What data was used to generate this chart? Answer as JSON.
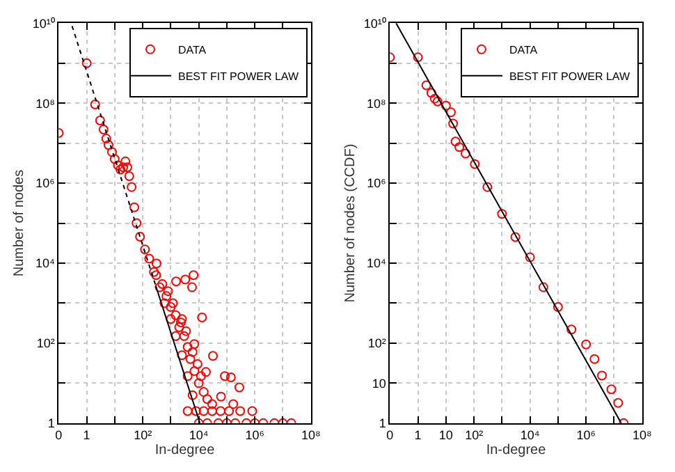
{
  "chart_data": [
    {
      "type": "scatter",
      "xlabel": "In-degree",
      "ylabel": "Number of nodes",
      "log": "xy",
      "grid": true,
      "legend": "top right",
      "xlim": [
        0.1,
        100000000
      ],
      "ylim": [
        1,
        10000000000
      ],
      "xticks": [
        {
          "value": 0.1,
          "label": "0"
        },
        1,
        {
          "value": 10,
          "label": null
        },
        {
          "value": 100,
          "label": "10²"
        },
        {
          "value": 1000,
          "label": null
        },
        {
          "value": 10000,
          "label": "10⁴"
        },
        {
          "value": 100000,
          "label": null
        },
        {
          "value": 1000000,
          "label": "10⁶"
        },
        {
          "value": 10000000,
          "label": null
        },
        {
          "value": 100000000,
          "label": "10⁸"
        }
      ],
      "yticks": [
        1,
        {
          "value": 10,
          "label": null
        },
        {
          "value": 100,
          "label": "10²"
        },
        {
          "value": 1000,
          "label": null
        },
        {
          "value": 10000,
          "label": "10⁴"
        },
        {
          "value": 100000,
          "label": null
        },
        {
          "value": 1000000,
          "label": "10⁶"
        },
        {
          "value": 10000000,
          "label": null
        },
        {
          "value": 100000000,
          "label": "10⁸"
        },
        {
          "value": 1000000000,
          "label": null
        },
        {
          "value": 10000000000,
          "label": "10¹⁰"
        }
      ],
      "series": [
        {
          "name": "DATA",
          "marker": "circle",
          "color": "#ff0000",
          "x": [
            0.1,
            1,
            2,
            3,
            4,
            5,
            6,
            8,
            10,
            13,
            16,
            20,
            24,
            28,
            33,
            40,
            50,
            60,
            80,
            120,
            170,
            250,
            400,
            600,
            1000,
            1500,
            2500,
            4000,
            6000,
            310,
            1550,
            3300,
            6500,
            5750,
            13000,
            2300,
            32000,
            85000,
            280000,
            140000,
            62000,
            170000,
            810000,
            6900,
            18000,
            300,
            500,
            700,
            1000,
            1500,
            2000,
            3000,
            4000,
            5000,
            7000,
            10000,
            15000,
            20000,
            30000,
            800,
            1200,
            2500,
            3500,
            6000,
            9000,
            12000,
            4000,
            8000,
            15000,
            30000,
            60000,
            120000,
            300000,
            10000,
            20000,
            50000,
            100000,
            200000,
            500000,
            1000000,
            2000000,
            5000000,
            10000000,
            20000000
          ],
          "values": [
            18000000,
            1000000000,
            93000000,
            37000000,
            22000000,
            13000000,
            9000000,
            6000000,
            4000000,
            2800000,
            2200000,
            2500000,
            3500000,
            2500000,
            1500000,
            800000,
            250000,
            100000,
            46000,
            22000,
            13000,
            6000,
            2500,
            1000,
            400,
            150,
            50,
            15,
            5,
            9800,
            3500,
            3900,
            5000,
            2500,
            440,
            330,
            48,
            15,
            7.8,
            14,
            4.6,
            3,
            2,
            95,
            19,
            5000,
            3000,
            1500,
            800,
            500,
            250,
            150,
            80,
            40,
            20,
            10,
            6,
            4,
            3,
            2000,
            1000,
            400,
            200,
            60,
            30,
            15,
            2,
            2,
            2,
            2,
            2,
            2,
            2,
            1,
            1,
            1,
            1,
            1,
            1,
            1,
            1,
            1,
            1,
            1
          ]
        },
        {
          "name": "BEST FIT POWER LAW",
          "type": "line",
          "color": "#000000",
          "line_style": "solid",
          "x": [
            290,
            11000
          ],
          "values": [
            2750,
            1
          ]
        },
        {
          "type": "line",
          "color": "#000000",
          "line_style": "dotted",
          "x": [
            0.3,
            290
          ],
          "values": [
            8500000000,
            2750
          ]
        }
      ]
    },
    {
      "type": "scatter",
      "xlabel": "In-degree",
      "ylabel": "Number of nodes (CCDF)",
      "log": "xy",
      "grid": true,
      "legend": "top right",
      "xlim": [
        0.1,
        100000000
      ],
      "ylim": [
        1,
        10000000000
      ],
      "xticks": [
        {
          "value": 0.1,
          "label": "0"
        },
        1,
        10,
        {
          "value": 100,
          "label": "10²"
        },
        {
          "value": 1000,
          "label": null
        },
        {
          "value": 10000,
          "label": "10⁴"
        },
        {
          "value": 100000,
          "label": null
        },
        {
          "value": 1000000,
          "label": "10⁶"
        },
        {
          "value": 10000000,
          "label": null
        },
        {
          "value": 100000000,
          "label": "10⁸"
        }
      ],
      "yticks": [
        1,
        10,
        {
          "value": 100,
          "label": "10²"
        },
        {
          "value": 1000,
          "label": null
        },
        {
          "value": 10000,
          "label": "10⁴"
        },
        {
          "value": 100000,
          "label": null
        },
        {
          "value": 1000000,
          "label": "10⁶"
        },
        {
          "value": 10000000,
          "label": null
        },
        {
          "value": 100000000,
          "label": "10⁸"
        },
        {
          "value": 1000000000,
          "label": null
        },
        {
          "value": 10000000000,
          "label": "10¹⁰"
        }
      ],
      "series": [
        {
          "name": "DATA",
          "marker": "circle",
          "color": "#ff0000",
          "x": [
            0.1,
            1,
            2,
            3,
            4,
            5,
            10,
            15,
            18,
            22,
            30,
            50,
            107,
            300,
            1000,
            3000,
            10000,
            30000,
            100000,
            300000,
            1000000,
            2000000,
            3700000,
            8000000,
            14000000,
            22000000
          ],
          "values": [
            1400000000,
            1400000000,
            280000000,
            180000000,
            130000000,
            110000000,
            87000000,
            59000000,
            31000000,
            11000000,
            8000000,
            5500000,
            3000000,
            800000,
            170000,
            45000,
            14000,
            2500,
            800,
            220,
            93,
            40,
            15.5,
            7,
            3.2,
            1
          ]
        },
        {
          "name": "BEST FIT POWER LAW",
          "type": "line",
          "color": "#000000",
          "line_style": "solid",
          "x": [
            0.166,
            18000000
          ],
          "values": [
            10000000000,
            1
          ]
        }
      ]
    }
  ]
}
